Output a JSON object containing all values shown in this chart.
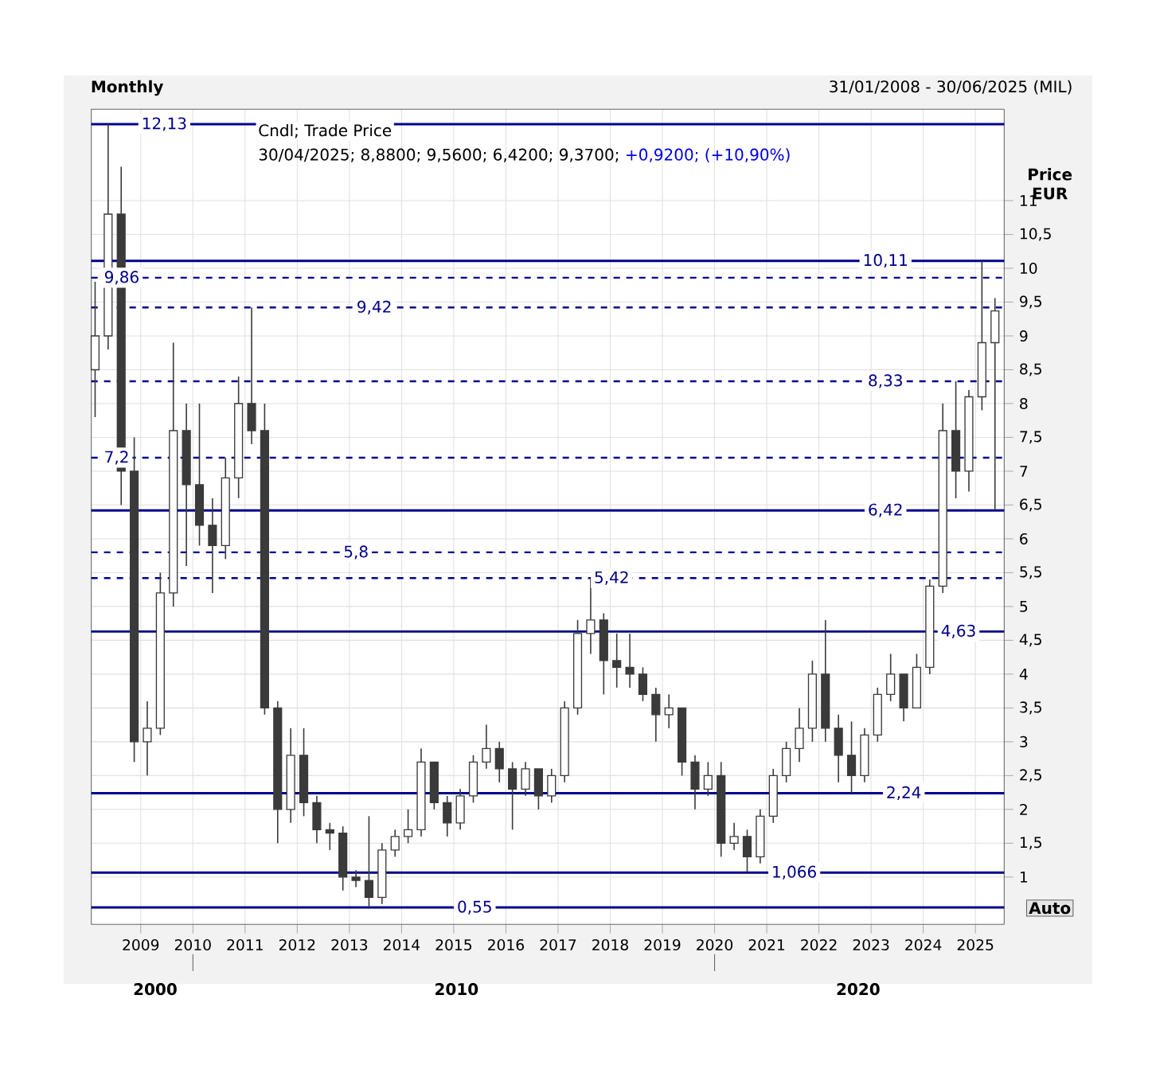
{
  "chart_data": {
    "type": "candlestick",
    "title": "Monthly",
    "subtitle": "31/01/2008 - 30/06/2025 (MIL)",
    "ylabel": "Price EUR",
    "color": "#3a3a3a",
    "grid": true,
    "annotations": [
      "Cndl; Trade Price",
      "30/04/2025; 8,8800; 9,5600; 6,4200; 9,3700;",
      "+0,9200; (+10,90%)",
      "2000",
      "2010",
      "2020",
      "Auto"
    ],
    "xlim": [
      "2008-01-20",
      "2025-07-20"
    ],
    "xticks": [
      "2009",
      "2010",
      "2011",
      "2012",
      "2013",
      "2014",
      "2015",
      "2016",
      "2017",
      "2018",
      "2019",
      "2020",
      "2021",
      "2022",
      "2023",
      "2024",
      "2025"
    ],
    "ylim": [
      0.3,
      12.35
    ],
    "yticks": [
      1,
      {
        "value": 1.5,
        "label": "1,5"
      },
      2,
      {
        "value": 2.5,
        "label": "2,5"
      },
      3,
      {
        "value": 3.5,
        "label": "3,5"
      },
      4,
      {
        "value": 4.5,
        "label": "4,5"
      },
      5,
      {
        "value": 5.5,
        "label": "5,5"
      },
      6,
      {
        "value": 6.5,
        "label": "6,5"
      },
      7,
      {
        "value": 7.5,
        "label": "7,5"
      },
      8,
      {
        "value": 8.5,
        "label": "8,5"
      },
      9,
      {
        "value": 9.5,
        "label": "9,5"
      },
      10,
      {
        "value": 10.5,
        "label": "10,5"
      },
      11
    ],
    "ref_lines": [
      {
        "axis": "y",
        "value": 12.13,
        "label": "12,13",
        "color": "#00008b",
        "line_style": "solid"
      },
      {
        "axis": "y",
        "value": 10.11,
        "label": "10,11",
        "color": "#00008b",
        "line_style": "solid"
      },
      {
        "axis": "y",
        "value": 9.86,
        "label": "9,86",
        "color": "#00008b",
        "line_style": "dashed"
      },
      {
        "axis": "y",
        "value": 9.42,
        "label": "9,42",
        "color": "#00008b",
        "line_style": "dashed"
      },
      {
        "axis": "y",
        "value": 8.33,
        "label": "8,33",
        "color": "#00008b",
        "line_style": "dashed"
      },
      {
        "axis": "y",
        "value": 7.2,
        "label": "7,2",
        "color": "#00008b",
        "line_style": "dashed"
      },
      {
        "axis": "y",
        "value": 6.42,
        "label": "6,42",
        "color": "#00008b",
        "line_style": "solid"
      },
      {
        "axis": "y",
        "value": 5.8,
        "label": "5,8",
        "color": "#00008b",
        "line_style": "dashed"
      },
      {
        "axis": "y",
        "value": 5.42,
        "label": "5,42",
        "color": "#00008b",
        "line_style": "dashed"
      },
      {
        "axis": "y",
        "value": 4.63,
        "label": "4,63",
        "color": "#00008b",
        "line_style": "solid"
      },
      {
        "axis": "y",
        "value": 2.24,
        "label": "2,24",
        "color": "#00008b",
        "line_style": "solid"
      },
      {
        "axis": "y",
        "value": 1.066,
        "label": "1,066",
        "color": "#00008b",
        "line_style": "solid"
      },
      {
        "axis": "y",
        "value": 0.55,
        "label": "0,55",
        "color": "#00008b",
        "line_style": "solid"
      }
    ],
    "x": [
      "2008-02",
      "2008-05",
      "2008-08",
      "2008-11",
      "2009-02",
      "2009-05",
      "2009-08",
      "2009-11",
      "2010-02",
      "2010-05",
      "2010-08",
      "2010-11",
      "2011-02",
      "2011-05",
      "2011-08",
      "2011-11",
      "2012-02",
      "2012-05",
      "2012-08",
      "2012-11",
      "2013-02",
      "2013-05",
      "2013-08",
      "2013-11",
      "2014-02",
      "2014-05",
      "2014-08",
      "2014-11",
      "2015-02",
      "2015-05",
      "2015-08",
      "2015-11",
      "2016-02",
      "2016-05",
      "2016-08",
      "2016-11",
      "2017-02",
      "2017-05",
      "2017-08",
      "2017-11",
      "2018-02",
      "2018-05",
      "2018-08",
      "2018-11",
      "2019-02",
      "2019-05",
      "2019-08",
      "2019-11",
      "2020-02",
      "2020-05",
      "2020-08",
      "2020-11",
      "2021-02",
      "2021-05",
      "2021-08",
      "2021-11",
      "2022-02",
      "2022-05",
      "2022-08",
      "2022-11",
      "2023-02",
      "2023-05",
      "2023-08",
      "2023-11",
      "2024-02",
      "2024-05",
      "2024-08",
      "2024-11",
      "2025-02",
      "2025-05"
    ],
    "ohlc": [
      [
        8.5,
        9.8,
        7.8,
        9.0
      ],
      [
        9.0,
        12.13,
        8.8,
        10.8
      ],
      [
        10.8,
        11.5,
        6.5,
        7.0
      ],
      [
        7.0,
        7.5,
        2.7,
        3.0
      ],
      [
        3.0,
        3.6,
        2.5,
        3.2
      ],
      [
        3.2,
        5.5,
        3.1,
        5.2
      ],
      [
        5.2,
        8.9,
        5.0,
        7.6
      ],
      [
        7.6,
        8.0,
        5.6,
        6.8
      ],
      [
        6.8,
        8.0,
        5.9,
        6.2
      ],
      [
        6.2,
        6.6,
        5.2,
        5.9
      ],
      [
        5.9,
        7.2,
        5.7,
        6.9
      ],
      [
        6.9,
        8.4,
        6.6,
        8.0
      ],
      [
        8.0,
        9.42,
        7.4,
        7.6
      ],
      [
        7.6,
        8.0,
        3.4,
        3.5
      ],
      [
        3.5,
        3.6,
        1.5,
        2.0
      ],
      [
        2.0,
        3.2,
        1.8,
        2.8
      ],
      [
        2.8,
        3.2,
        1.9,
        2.1
      ],
      [
        2.1,
        2.2,
        1.5,
        1.7
      ],
      [
        1.7,
        1.8,
        1.4,
        1.65
      ],
      [
        1.65,
        1.75,
        0.8,
        1.0
      ],
      [
        1.0,
        1.1,
        0.85,
        0.95
      ],
      [
        0.95,
        1.9,
        0.55,
        0.7
      ],
      [
        0.7,
        1.5,
        0.6,
        1.4
      ],
      [
        1.4,
        1.7,
        1.3,
        1.6
      ],
      [
        1.6,
        2.0,
        1.5,
        1.7
      ],
      [
        1.7,
        2.9,
        1.6,
        2.7
      ],
      [
        2.7,
        2.7,
        2.0,
        2.1
      ],
      [
        2.1,
        2.2,
        1.6,
        1.8
      ],
      [
        1.8,
        2.3,
        1.7,
        2.2
      ],
      [
        2.2,
        2.8,
        2.1,
        2.7
      ],
      [
        2.7,
        3.25,
        2.6,
        2.9
      ],
      [
        2.9,
        3.0,
        2.4,
        2.6
      ],
      [
        2.6,
        2.7,
        1.7,
        2.3
      ],
      [
        2.3,
        2.7,
        2.2,
        2.6
      ],
      [
        2.6,
        2.6,
        2.0,
        2.2
      ],
      [
        2.2,
        2.6,
        2.1,
        2.5
      ],
      [
        2.5,
        3.6,
        2.4,
        3.5
      ],
      [
        3.5,
        4.8,
        3.4,
        4.6
      ],
      [
        4.6,
        5.42,
        4.3,
        4.8
      ],
      [
        4.8,
        4.9,
        3.7,
        4.2
      ],
      [
        4.2,
        4.6,
        3.8,
        4.1
      ],
      [
        4.1,
        4.6,
        3.8,
        4.0
      ],
      [
        4.0,
        4.1,
        3.6,
        3.7
      ],
      [
        3.7,
        3.8,
        3.0,
        3.4
      ],
      [
        3.4,
        3.7,
        3.2,
        3.5
      ],
      [
        3.5,
        3.5,
        2.5,
        2.7
      ],
      [
        2.7,
        2.8,
        2.0,
        2.3
      ],
      [
        2.3,
        2.7,
        2.2,
        2.5
      ],
      [
        2.5,
        2.7,
        1.3,
        1.5
      ],
      [
        1.5,
        1.8,
        1.4,
        1.6
      ],
      [
        1.6,
        1.7,
        1.066,
        1.3
      ],
      [
        1.3,
        2.0,
        1.2,
        1.9
      ],
      [
        1.9,
        2.6,
        1.8,
        2.5
      ],
      [
        2.5,
        3.0,
        2.4,
        2.9
      ],
      [
        2.9,
        3.5,
        2.7,
        3.2
      ],
      [
        3.2,
        4.2,
        3.0,
        4.0
      ],
      [
        4.0,
        4.8,
        3.0,
        3.2
      ],
      [
        3.2,
        3.4,
        2.4,
        2.8
      ],
      [
        2.8,
        3.3,
        2.24,
        2.5
      ],
      [
        2.5,
        3.2,
        2.4,
        3.1
      ],
      [
        3.1,
        3.8,
        3.0,
        3.7
      ],
      [
        3.7,
        4.3,
        3.6,
        4.0
      ],
      [
        4.0,
        4.0,
        3.3,
        3.5
      ],
      [
        3.5,
        4.3,
        3.5,
        4.1
      ],
      [
        4.1,
        5.4,
        4.0,
        5.3
      ],
      [
        5.3,
        8.0,
        5.2,
        7.6
      ],
      [
        7.6,
        8.33,
        6.6,
        7.0
      ],
      [
        7.0,
        8.2,
        6.7,
        8.1
      ],
      [
        8.1,
        10.11,
        7.9,
        8.9
      ],
      [
        8.9,
        9.56,
        6.42,
        9.37
      ]
    ]
  }
}
